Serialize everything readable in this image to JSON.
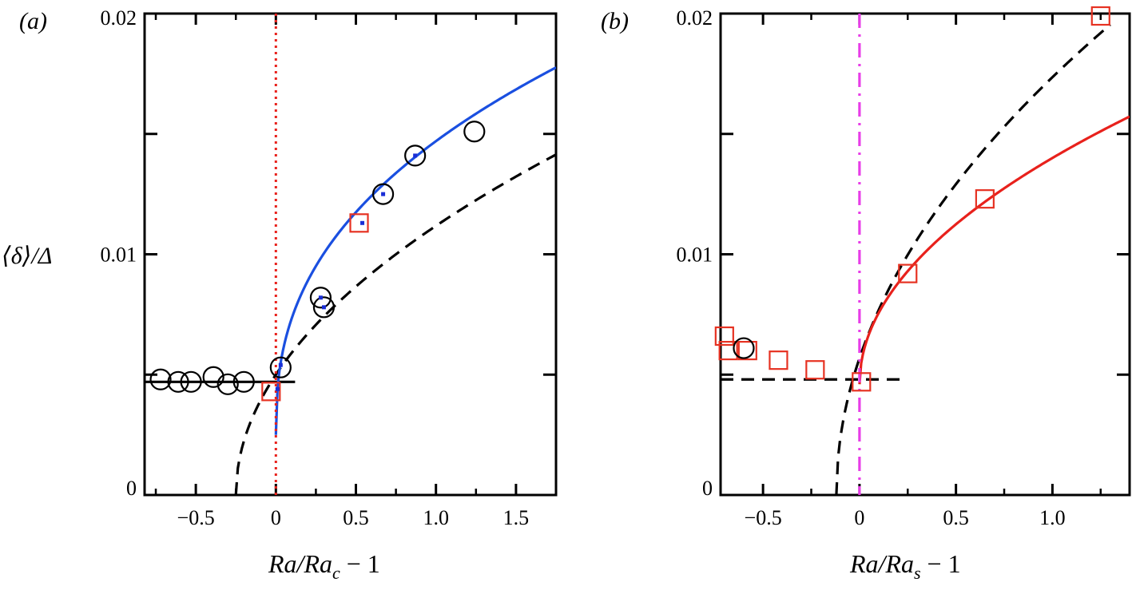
{
  "ylabel": "⟨δ⟩/Δ",
  "chart_data": [
    {
      "type": "scatter",
      "panel_label": "(a)",
      "xlabel_main": "Ra/Ra",
      "xlabel_sub": "c",
      "xlabel_tail": " − 1",
      "xlim": [
        -0.82,
        1.75
      ],
      "ylim": [
        0,
        0.02
      ],
      "xticks": [
        -0.5,
        0,
        0.5,
        1.0,
        1.5
      ],
      "xtick_labels": [
        "−0.5",
        "0",
        "0.5",
        "1.0",
        "1.5"
      ],
      "xticks_minor": [
        -0.75,
        -0.25,
        0.25,
        0.75,
        1.25
      ],
      "yticks": [
        0,
        0.01,
        0.02
      ],
      "ytick_labels": [
        "0",
        "0.01",
        "0.02"
      ],
      "yticks_minor": [
        0.005,
        0.015
      ],
      "series": [
        {
          "marker": "circle",
          "color": "#000000",
          "points": [
            [
              -0.72,
              0.0048
            ],
            [
              -0.61,
              0.0047
            ],
            [
              -0.53,
              0.0047
            ],
            [
              -0.39,
              0.0049
            ],
            [
              -0.3,
              0.0046
            ],
            [
              -0.2,
              0.0047
            ],
            [
              0.03,
              0.0053
            ],
            [
              0.28,
              0.0082
            ],
            [
              0.3,
              0.0078
            ],
            [
              0.67,
              0.0125
            ],
            [
              0.87,
              0.0141
            ],
            [
              1.24,
              0.0151
            ]
          ]
        },
        {
          "marker": "square",
          "color": "#e63222",
          "points": [
            [
              -0.03,
              0.0043
            ],
            [
              0.52,
              0.0113
            ]
          ]
        },
        {
          "marker": "dot",
          "color": "#1a2ed6",
          "points": [
            [
              0.01,
              0.0044
            ],
            [
              0.03,
              0.0054
            ],
            [
              0.28,
              0.0082
            ],
            [
              0.3,
              0.0078
            ],
            [
              0.54,
              0.0113
            ],
            [
              0.67,
              0.0125
            ],
            [
              0.87,
              0.0141
            ]
          ]
        }
      ],
      "lines": [
        {
          "style": "solid",
          "color": "#000000",
          "points": [
            [
              -0.82,
              0.0047
            ],
            [
              0.12,
              0.0047
            ]
          ]
        },
        {
          "style": "dashed",
          "color": "#000000",
          "kind": "sqrt",
          "x0": -0.25,
          "a": 0.01,
          "xmin": -0.25,
          "xmax": 1.75
        },
        {
          "style": "solid",
          "color": "#1a4fe0",
          "kind": "power",
          "x0": 0,
          "b": 0.0025,
          "a": 0.0122,
          "p": 0.4,
          "xmin": 0.0,
          "xmax": 1.75
        },
        {
          "style": "dotted",
          "color": "#e8211c",
          "vertical": 0
        }
      ]
    },
    {
      "type": "scatter",
      "panel_label": "(b)",
      "xlabel_main": "Ra/Ra",
      "xlabel_sub": "s",
      "xlabel_tail": " − 1",
      "xlim": [
        -0.72,
        1.4
      ],
      "ylim": [
        0,
        0.02
      ],
      "xticks": [
        -0.5,
        0,
        0.5,
        1.0
      ],
      "xtick_labels": [
        "−0.5",
        "0",
        "0.5",
        "1.0"
      ],
      "xticks_minor": [
        -0.25,
        0.25,
        0.75,
        1.25
      ],
      "yticks": [
        0,
        0.01,
        0.02
      ],
      "ytick_labels": [
        "0",
        "0.01",
        "0.02"
      ],
      "yticks_minor": [
        0.005,
        0.015
      ],
      "series": [
        {
          "marker": "square",
          "color": "#e63222",
          "points": [
            [
              -0.7,
              0.0066
            ],
            [
              -0.68,
              0.006
            ],
            [
              -0.58,
              0.006
            ],
            [
              -0.42,
              0.0056
            ],
            [
              -0.23,
              0.0052
            ],
            [
              0.01,
              0.0047
            ],
            [
              0.25,
              0.0092
            ],
            [
              0.65,
              0.0123
            ],
            [
              1.25,
              0.0199
            ]
          ]
        },
        {
          "marker": "circle",
          "color": "#000000",
          "points": [
            [
              -0.6,
              0.0061
            ]
          ]
        }
      ],
      "lines": [
        {
          "style": "dashed",
          "color": "#000000",
          "points": [
            [
              -0.72,
              0.0048
            ],
            [
              0.22,
              0.0048
            ]
          ]
        },
        {
          "style": "dashed",
          "color": "#000000",
          "kind": "sqrt",
          "x0": -0.12,
          "a": 0.0164,
          "xmin": -0.12,
          "xmax": 1.3
        },
        {
          "style": "solid",
          "color": "#e8211c",
          "kind": "power",
          "x0": 0,
          "b": 0.0046,
          "a": 0.0094,
          "p": 0.5,
          "xmin": 0.0,
          "xmax": 1.4
        },
        {
          "style": "dashdot",
          "color": "#e83de8",
          "vertical": 0
        }
      ]
    }
  ]
}
